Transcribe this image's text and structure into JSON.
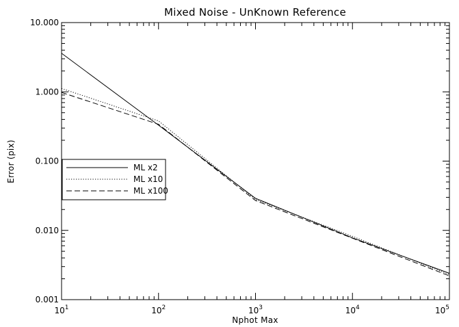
{
  "chart_data": {
    "type": "line",
    "title": "Mixed Noise - UnKnown Reference",
    "xlabel": "Nphot Max",
    "ylabel": "Error (pix)",
    "x_scale": "log",
    "y_scale": "log",
    "xlim": [
      10,
      100000
    ],
    "ylim": [
      0.001,
      10
    ],
    "grid": false,
    "legend_position": "left",
    "x_ticks": [
      {
        "value": 10,
        "base": "10",
        "exp": "1"
      },
      {
        "value": 100,
        "base": "10",
        "exp": "2"
      },
      {
        "value": 1000,
        "base": "10",
        "exp": "3"
      },
      {
        "value": 10000,
        "base": "10",
        "exp": "4"
      },
      {
        "value": 100000,
        "base": "10",
        "exp": "5"
      }
    ],
    "y_ticks": [
      {
        "value": 0.001,
        "label": "0.001"
      },
      {
        "value": 0.01,
        "label": "0.010"
      },
      {
        "value": 0.1,
        "label": "0.100"
      },
      {
        "value": 1,
        "label": "1.000"
      },
      {
        "value": 10,
        "label": "10.000"
      }
    ],
    "series": [
      {
        "name": "ML x2",
        "style": "solid",
        "x": [
          10,
          100,
          1000,
          10000,
          100000
        ],
        "y": [
          3.6,
          0.33,
          0.029,
          0.0078,
          0.0024
        ]
      },
      {
        "name": "ML x10",
        "style": "dotted",
        "x": [
          10,
          100,
          1000,
          10000,
          100000
        ],
        "y": [
          1.12,
          0.38,
          0.028,
          0.0082,
          0.0023
        ]
      },
      {
        "name": "ML x100",
        "style": "dashed",
        "x": [
          10,
          100,
          1000,
          10000,
          100000
        ],
        "y": [
          0.98,
          0.34,
          0.027,
          0.0077,
          0.0022
        ]
      }
    ]
  }
}
